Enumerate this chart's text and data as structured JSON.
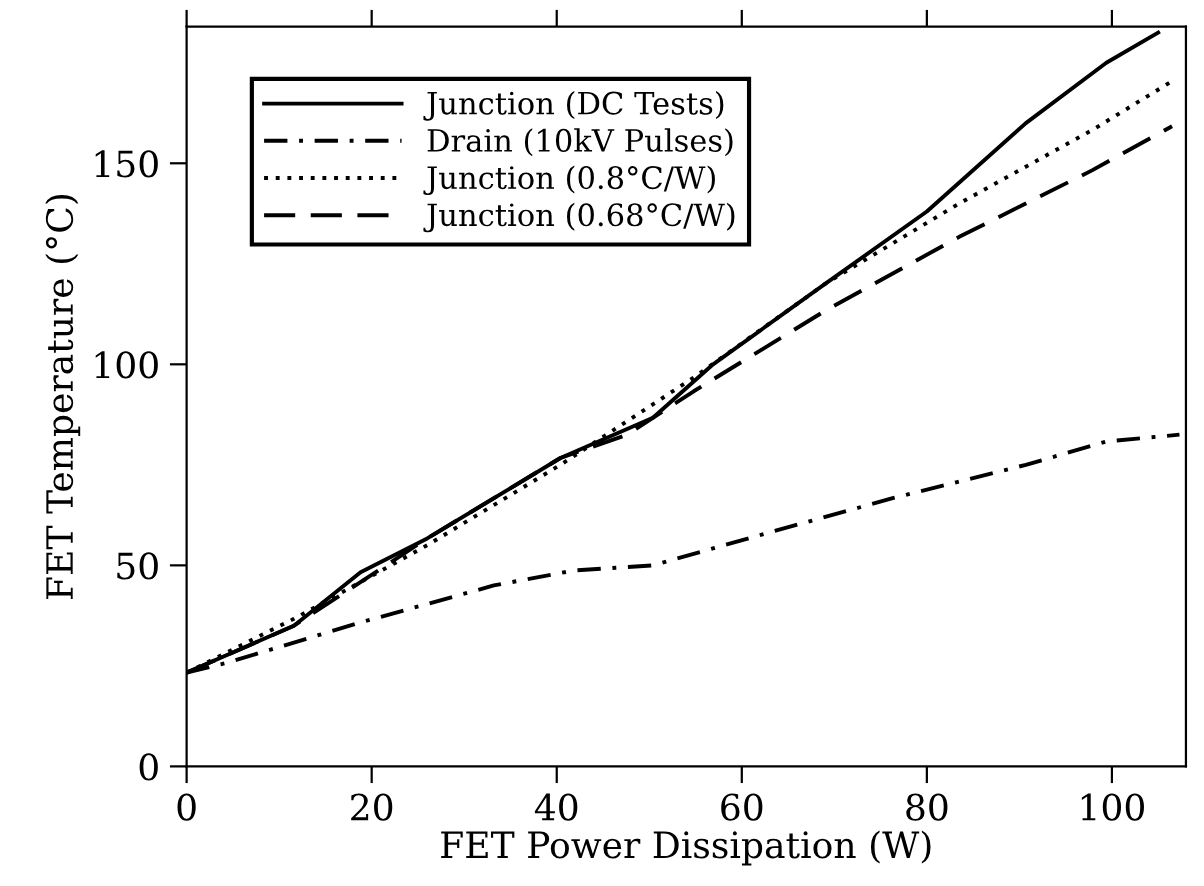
{
  "chart_data": {
    "type": "line",
    "xlabel": "FET Power Dissipation (W)",
    "ylabel": "FET Temperature (°C)",
    "xlim": [
      0,
      108
    ],
    "xticks": [
      0,
      20,
      40,
      60,
      80,
      100
    ],
    "ylim": [
      0,
      184
    ],
    "yticks": [
      0,
      50,
      100,
      150
    ],
    "grid": false,
    "legend": "top left",
    "marker": "none",
    "series": [
      {
        "name": "Junction (DC Tests)",
        "color": "#000000",
        "line_style": "solid",
        "x": [
          0,
          11.6,
          18.8,
          26,
          40.4,
          50.4,
          56.9,
          69,
          80,
          90.7,
          99.4,
          105
        ],
        "values": [
          23.3,
          35,
          48.3,
          56.7,
          76.7,
          86.7,
          100,
          120,
          138,
          160,
          175,
          182.5
        ]
      },
      {
        "name": "Drain (10kV Pulses)",
        "color": "#000000",
        "line_style": "dashdot",
        "x": [
          0,
          4.4,
          18.8,
          33.2,
          41.8,
          50.4,
          61.9,
          76.3,
          90.7,
          99.4,
          107.3
        ],
        "values": [
          23.3,
          25.8,
          35.8,
          45,
          48.7,
          50,
          57.5,
          66.7,
          75,
          80.8,
          82.5
        ]
      },
      {
        "name": "Junction (0.8°C/W)",
        "color": "#000000",
        "line_style": "dotted",
        "x": [
          0,
          11.6,
          26,
          40.4,
          54.8,
          69,
          83.5,
          97.9,
          106.2
        ],
        "values": [
          23.3,
          36.7,
          55,
          75,
          96.7,
          120,
          140,
          158.3,
          170
        ]
      },
      {
        "name": "Junction (0.68°C/W)",
        "color": "#000000",
        "line_style": "dashed",
        "x": [
          0,
          11.6,
          26,
          40.4,
          47.6,
          54.8,
          69,
          83.5,
          97.9,
          106.5
        ],
        "values": [
          23.3,
          35,
          56.7,
          76.7,
          82.5,
          93.3,
          113.3,
          131.7,
          148.3,
          159.2
        ]
      }
    ]
  }
}
